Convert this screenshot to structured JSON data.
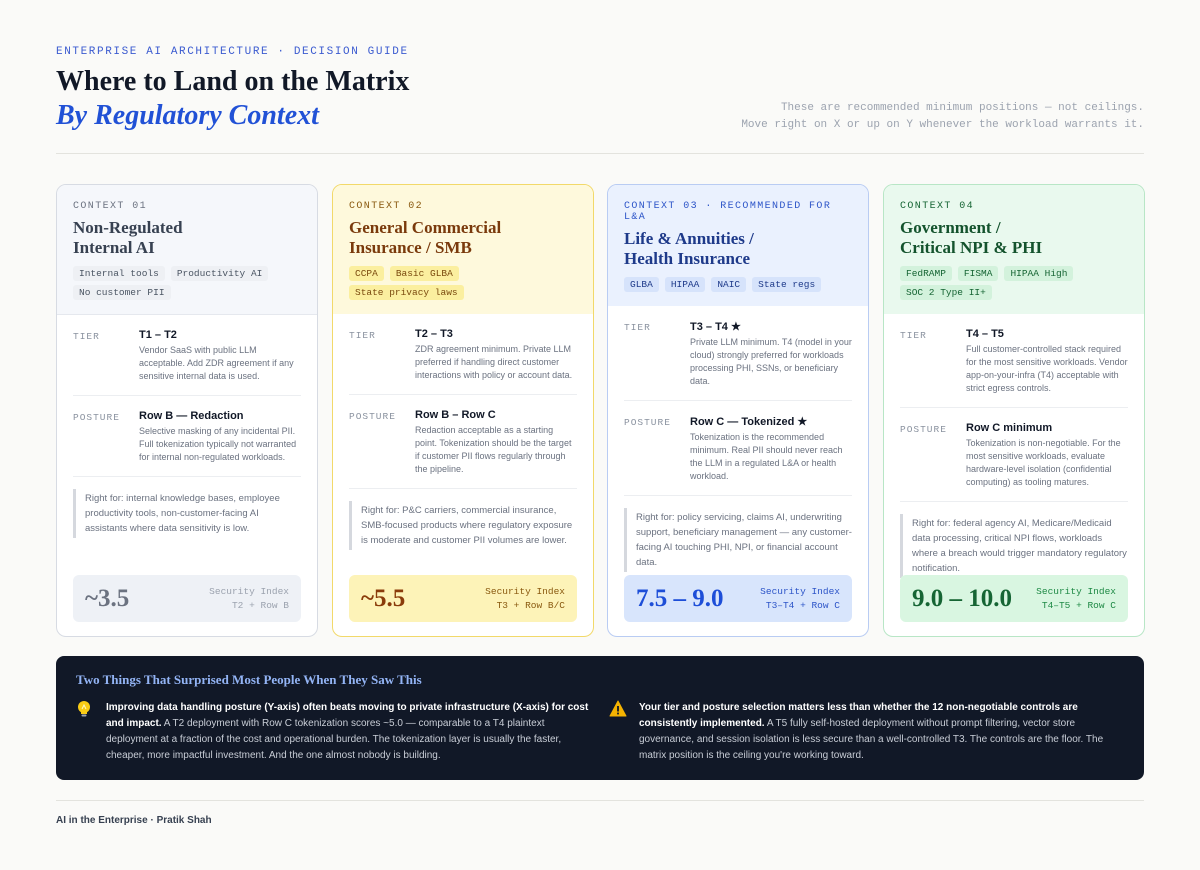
{
  "header": {
    "eyebrow": "ENTERPRISE AI ARCHITECTURE · DECISION GUIDE",
    "title": "Where to Land on the Matrix",
    "subtitle": "By Regulatory Context",
    "note_line1": "These are recommended minimum positions — not ceilings.",
    "note_line2": "Move right on X or up on Y whenever the workload warrants it."
  },
  "labels": {
    "tier": "TIER",
    "posture": "POSTURE",
    "security_index": "Security Index"
  },
  "cards": [
    {
      "context": "CONTEXT 01",
      "title_line1": "Non-Regulated",
      "title_line2": "Internal AI",
      "tags": [
        "Internal tools",
        "Productivity AI",
        "No customer PII"
      ],
      "tier_title": "T1 – T2",
      "tier_desc": "Vendor SaaS with public LLM acceptable. Add ZDR agreement if any sensitive internal data is used.",
      "posture_title": "Row B — Redaction",
      "posture_desc": "Selective masking of any incidental PII. Full tokenization typically not warranted for internal non-regulated workloads.",
      "right_for": "Right for: internal knowledge bases, employee productivity tools, non-customer-facing AI assistants where data sensitivity is low.",
      "score": "~3.5",
      "score_sub": "T2 + Row B"
    },
    {
      "context": "CONTEXT 02",
      "title_line1": "General Commercial",
      "title_line2": "Insurance / SMB",
      "tags": [
        "CCPA",
        "Basic GLBA",
        "State privacy laws"
      ],
      "tier_title": "T2 – T3",
      "tier_desc": "ZDR agreement minimum. Private LLM preferred if handling direct customer interactions with policy or account data.",
      "posture_title": "Row B – Row C",
      "posture_desc": "Redaction acceptable as a starting point. Tokenization should be the target if customer PII flows regularly through the pipeline.",
      "right_for": "Right for: P&C carriers, commercial insurance, SMB-focused products where regulatory exposure is moderate and customer PII volumes are lower.",
      "score": "~5.5",
      "score_sub": "T3 + Row B/C"
    },
    {
      "context": "CONTEXT 03 · RECOMMENDED FOR L&A",
      "title_line1": "Life & Annuities /",
      "title_line2": "Health Insurance",
      "tags": [
        "GLBA",
        "HIPAA",
        "NAIC",
        "State regs"
      ],
      "tier_title": "T3 – T4 ★",
      "tier_desc": "Private LLM minimum. T4 (model in your cloud) strongly preferred for workloads processing PHI, SSNs, or beneficiary data.",
      "posture_title": "Row C — Tokenized ★",
      "posture_desc": "Tokenization is the recommended minimum. Real PII should never reach the LLM in a regulated L&A or health workload.",
      "right_for": "Right for: policy servicing, claims AI, underwriting support, beneficiary management — any customer-facing AI touching PHI, NPI, or financial account data.",
      "score": "7.5 – 9.0",
      "score_sub": "T3–T4 + Row C"
    },
    {
      "context": "CONTEXT 04",
      "title_line1": "Government /",
      "title_line2": "Critical NPI & PHI",
      "tags": [
        "FedRAMP",
        "FISMA",
        "HIPAA High",
        "SOC 2 Type II+"
      ],
      "tier_title": "T4 – T5",
      "tier_desc": "Full customer-controlled stack required for the most sensitive workloads. Vendor app-on-your-infra (T4) acceptable with strict egress controls.",
      "posture_title": "Row C minimum",
      "posture_desc": "Tokenization is non-negotiable. For the most sensitive workloads, evaluate hardware-level isolation (confidential computing) as tooling matures.",
      "right_for": "Right for: federal agency AI, Medicare/Medicaid data processing, critical NPI flows, workloads where a breach would trigger mandatory regulatory notification.",
      "score": "9.0 – 10.0",
      "score_sub": "T4–T5 + Row C"
    }
  ],
  "insights": {
    "title": "Two Things That Surprised Most People When They Saw This",
    "items": [
      {
        "icon": "lightbulb-icon",
        "bold": "Improving data handling posture (Y-axis) often beats moving to private infrastructure (X-axis) for cost and impact.",
        "text": " A T2 deployment with Row C tokenization scores ~5.0 — comparable to a T4 plaintext deployment at a fraction of the cost and operational burden. The tokenization layer is usually the faster, cheaper, more impactful investment. And the one almost nobody is building."
      },
      {
        "icon": "warning-icon",
        "bold": "Your tier and posture selection matters less than whether the 12 non-negotiable controls are consistently implemented.",
        "text": " A T5 fully self-hosted deployment without prompt filtering, vector store governance, and session isolation is less secure than a well-controlled T3. The controls are the floor. The matrix position is the ceiling you're working toward."
      }
    ]
  },
  "footer": "AI in the Enterprise · Pratik Shah"
}
